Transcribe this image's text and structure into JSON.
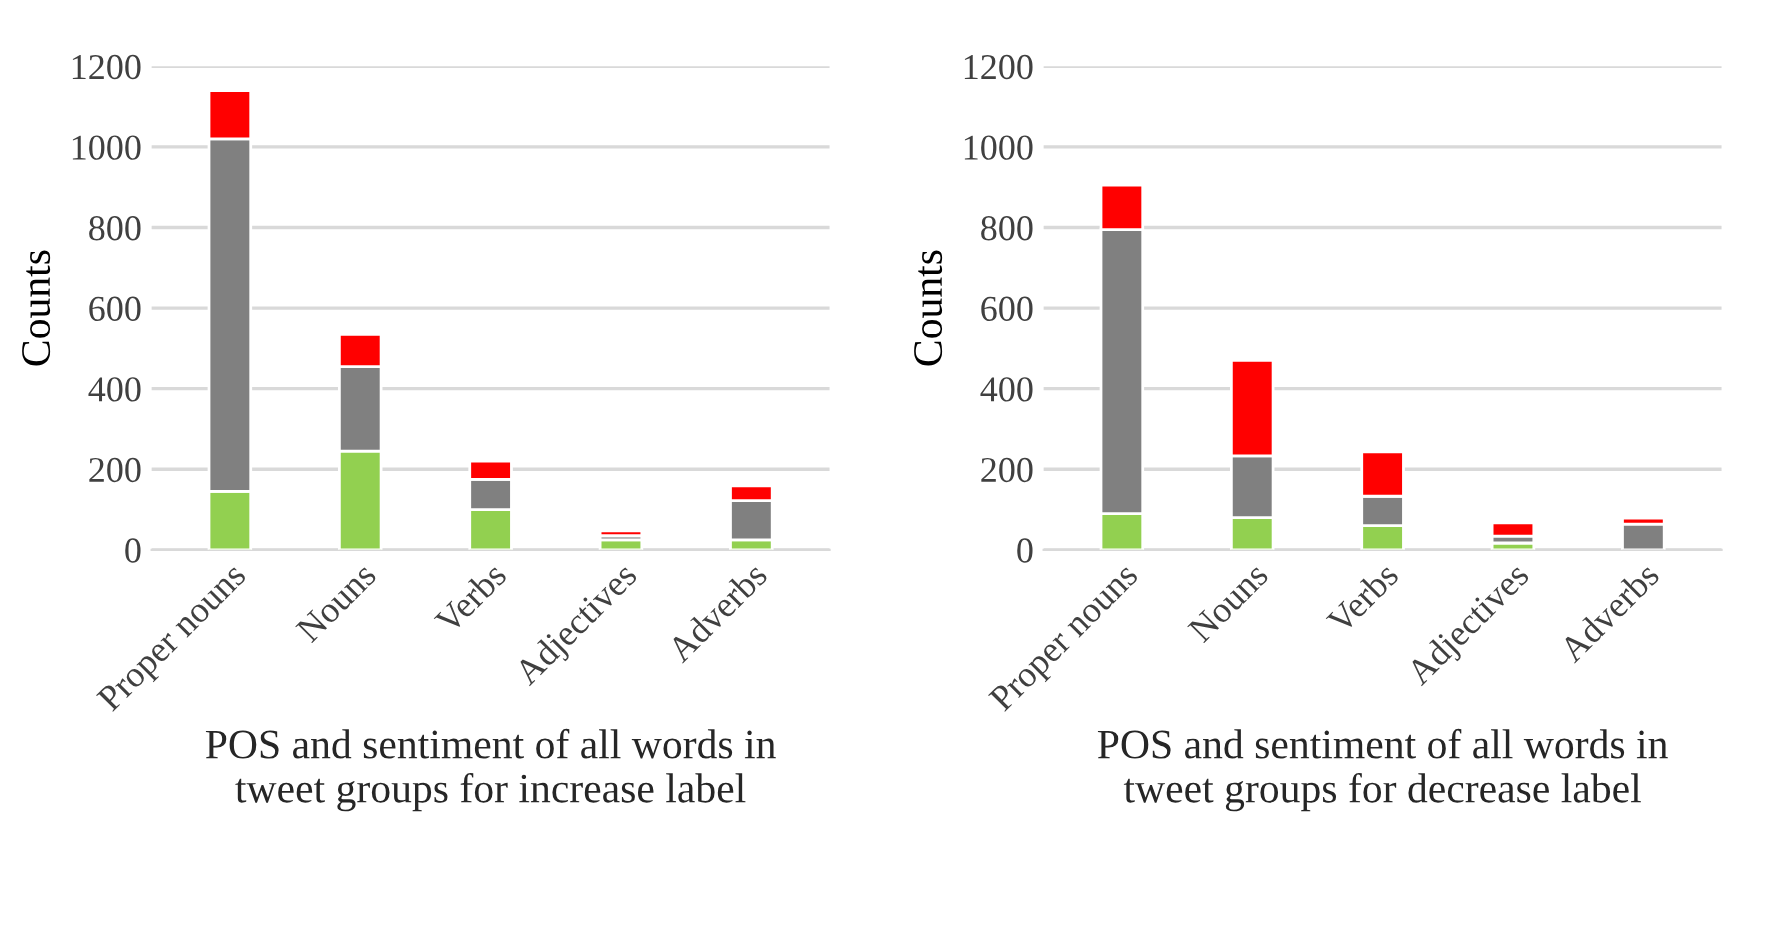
{
  "chart_data": [
    {
      "type": "bar",
      "stacked": true,
      "ylabel": "Counts",
      "xlabel": "POS and sentiment of all words in\ntweet groups for increase label",
      "categories": [
        "Proper nouns",
        "Nouns",
        "Verbs",
        "Adjectives",
        "Adverbs"
      ],
      "ylim": [
        0,
        1200
      ],
      "yticks": [
        0,
        200,
        400,
        600,
        800,
        1000,
        1200
      ],
      "grid": "y",
      "series": [
        {
          "color": "#92d050",
          "values": [
            145,
            245,
            100,
            25,
            25
          ]
        },
        {
          "color": "#808080",
          "values": [
            875,
            210,
            75,
            10,
            97
          ]
        },
        {
          "color": "#ff0000",
          "values": [
            120,
            80,
            45,
            12,
            37
          ]
        }
      ]
    },
    {
      "type": "bar",
      "stacked": true,
      "ylabel": "Counts",
      "xlabel": "POS and sentiment of all words in\ntweet groups for decrease label",
      "categories": [
        "Proper nouns",
        "Nouns",
        "Verbs",
        "Adjectives",
        "Adverbs"
      ],
      "ylim": [
        0,
        1200
      ],
      "yticks": [
        0,
        200,
        400,
        600,
        800,
        1000,
        1200
      ],
      "grid": "y",
      "series": [
        {
          "color": "#92d050",
          "values": [
            90,
            80,
            60,
            17,
            null
          ]
        },
        {
          "color": "#808080",
          "values": [
            705,
            153,
            73,
            17,
            64
          ]
        },
        {
          "color": "#ff0000",
          "values": [
            110,
            237,
            110,
            33,
            15
          ]
        }
      ]
    }
  ]
}
